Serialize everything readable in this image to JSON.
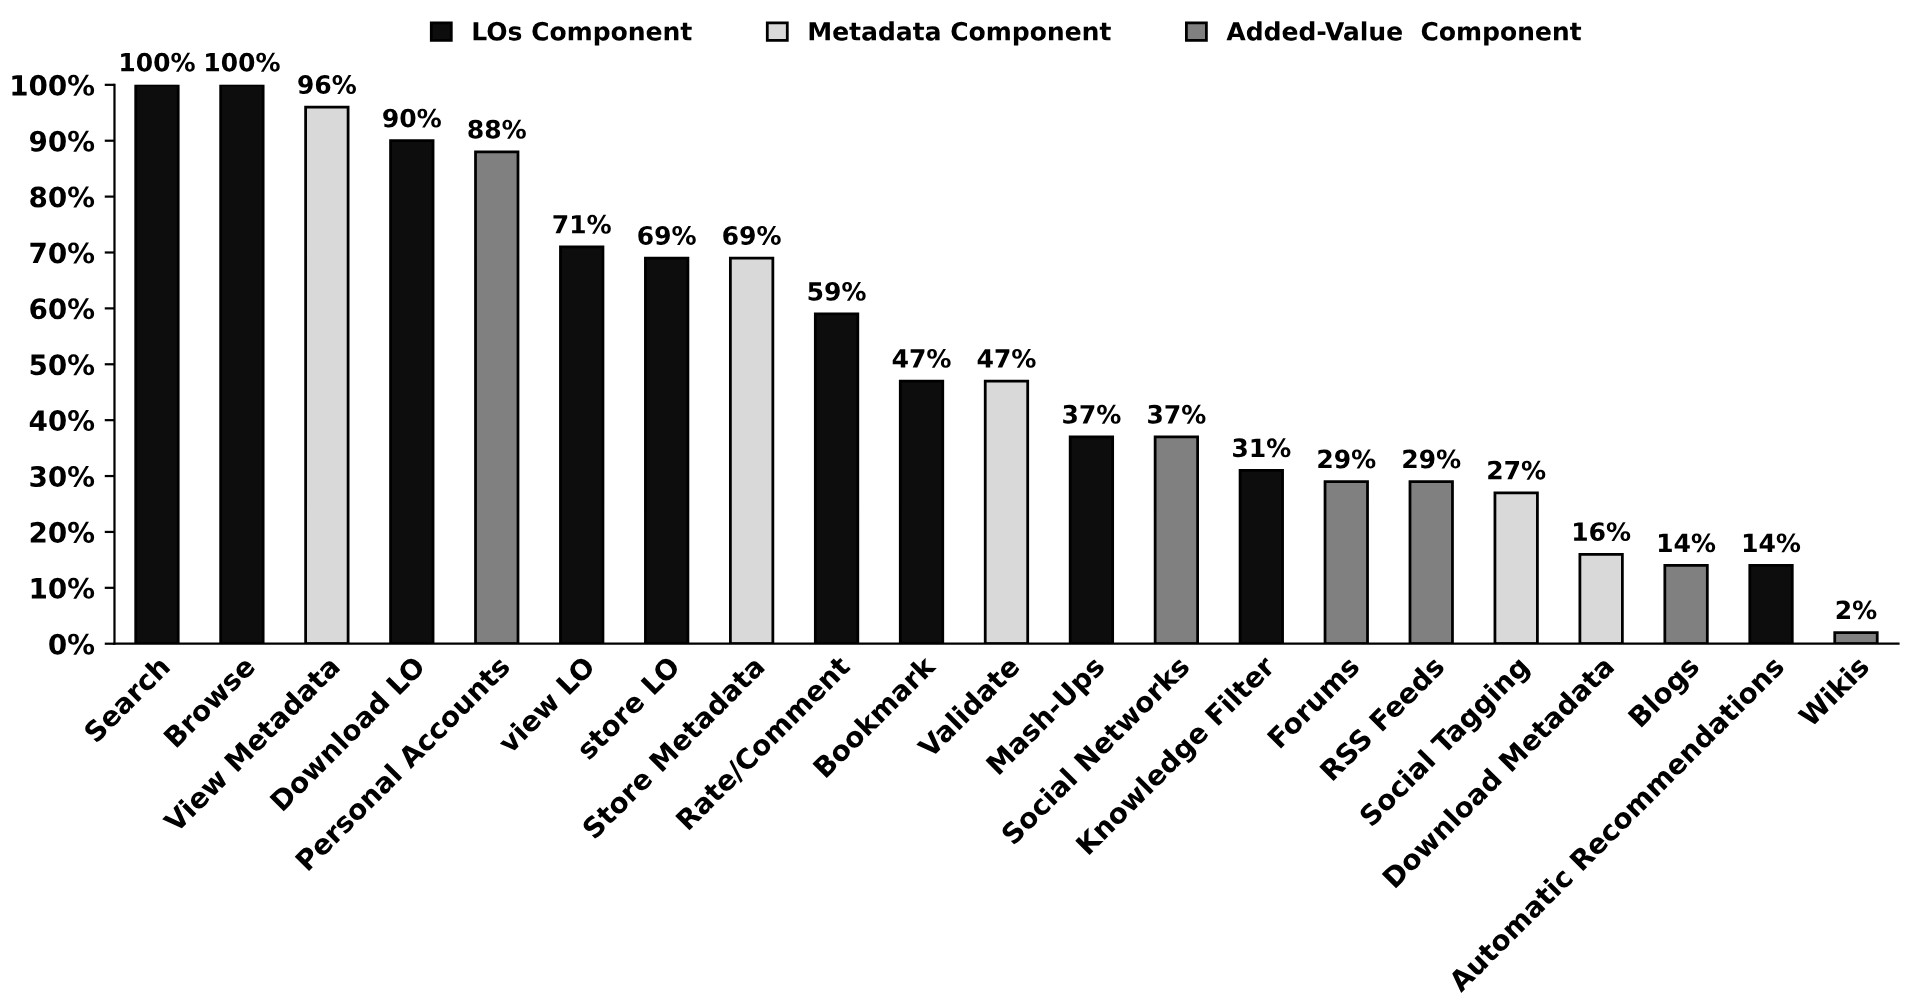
{
  "chart_data": {
    "type": "bar",
    "legend": "top",
    "categories": [
      "Search",
      "Browse",
      "View Metadata",
      "Download LO",
      "Personal Accounts",
      "view LO",
      "store LO",
      "Store Metadata",
      "Rate/Comment",
      "Bookmark",
      "Validate",
      "Mash-Ups",
      "Social Networks",
      "Knowledge Filter",
      "Forums",
      "RSS Feeds",
      "Social Tagging",
      "Download Metadata",
      "Blogs",
      "Automatic Recommendations",
      "Wikis"
    ],
    "series": [
      {
        "name": "LOs Component",
        "color": "#0d0d0d",
        "values": [
          100,
          100,
          null,
          90,
          null,
          71,
          69,
          null,
          59,
          47,
          null,
          37,
          null,
          31,
          null,
          null,
          null,
          null,
          null,
          14,
          null
        ],
        "value_labels": [
          "100%",
          "100%",
          null,
          "90%",
          null,
          "71%",
          "69%",
          null,
          "59%",
          "47%",
          null,
          "37%",
          null,
          "31%",
          null,
          null,
          null,
          null,
          null,
          "14%",
          null
        ]
      },
      {
        "name": "Metadata Component",
        "color": "#d9d9d9",
        "values": [
          null,
          null,
          96,
          null,
          null,
          null,
          null,
          69,
          null,
          null,
          47,
          null,
          null,
          null,
          null,
          null,
          27,
          16,
          null,
          null,
          null
        ],
        "value_labels": [
          null,
          null,
          "96%",
          null,
          null,
          null,
          null,
          "69%",
          null,
          null,
          "47%",
          null,
          null,
          null,
          null,
          null,
          "27%",
          "16%",
          null,
          null,
          null
        ]
      },
      {
        "name": "Added-Value  Component",
        "color": "#808080",
        "values": [
          null,
          null,
          null,
          null,
          88,
          null,
          null,
          null,
          null,
          null,
          null,
          null,
          37,
          null,
          29,
          29,
          null,
          null,
          14,
          null,
          2
        ],
        "value_labels": [
          null,
          null,
          null,
          null,
          "88%",
          null,
          null,
          null,
          null,
          null,
          null,
          null,
          "37%",
          null,
          "29%",
          "29%",
          null,
          null,
          "14%",
          null,
          "2%"
        ]
      }
    ],
    "ylim": [
      0,
      100
    ],
    "yticks": [
      {
        "value": 0,
        "label": "0%"
      },
      {
        "value": 10,
        "label": "10%"
      },
      {
        "value": 20,
        "label": "20%"
      },
      {
        "value": 30,
        "label": "30%"
      },
      {
        "value": 40,
        "label": "40%"
      },
      {
        "value": 50,
        "label": "50%"
      },
      {
        "value": 60,
        "label": "60%"
      },
      {
        "value": 70,
        "label": "70%"
      },
      {
        "value": 80,
        "label": "80%"
      },
      {
        "value": 90,
        "label": "90%"
      },
      {
        "value": 100,
        "label": "100%"
      }
    ]
  }
}
